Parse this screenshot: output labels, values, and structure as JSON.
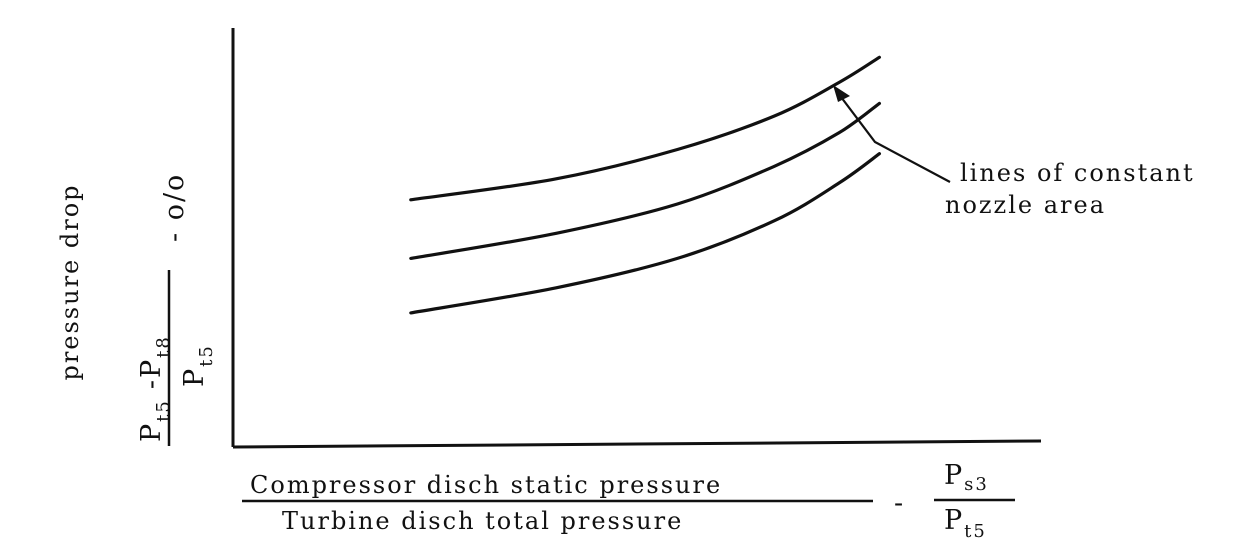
{
  "chart_data": {
    "type": "line",
    "title": "",
    "ylabel": "pressure drop",
    "y_formula": {
      "num_a": "P",
      "num_a_sub": "t5",
      "minus": "-",
      "num_b": "P",
      "num_b_sub": "t8",
      "den": "P",
      "den_sub": "t5",
      "unit": "- o/o"
    },
    "xlabel": {
      "numerator": "Compressor disch static pressure",
      "denominator": "Turbine disch total pressure",
      "dash": "-",
      "symbol_num": "P",
      "symbol_num_sub": "s3",
      "symbol_den": "P",
      "symbol_den_sub": "t5"
    },
    "xlim": [
      0,
      100
    ],
    "ylim": [
      0,
      100
    ],
    "x_ticks": [],
    "y_ticks": [],
    "grid": false,
    "annotation": {
      "line1": "lines of constant",
      "line2": "nozzle area"
    },
    "series": [
      {
        "x": [
          22,
          40,
          55,
          67,
          75,
          80
        ],
        "y": [
          59,
          64,
          71,
          79,
          87,
          93
        ]
      },
      {
        "x": [
          22,
          40,
          55,
          67,
          75,
          80
        ],
        "y": [
          45,
          51,
          58,
          67,
          75,
          82
        ]
      },
      {
        "x": [
          22,
          40,
          55,
          67,
          75,
          80
        ],
        "y": [
          32,
          38,
          45,
          54,
          63,
          70
        ]
      }
    ]
  }
}
